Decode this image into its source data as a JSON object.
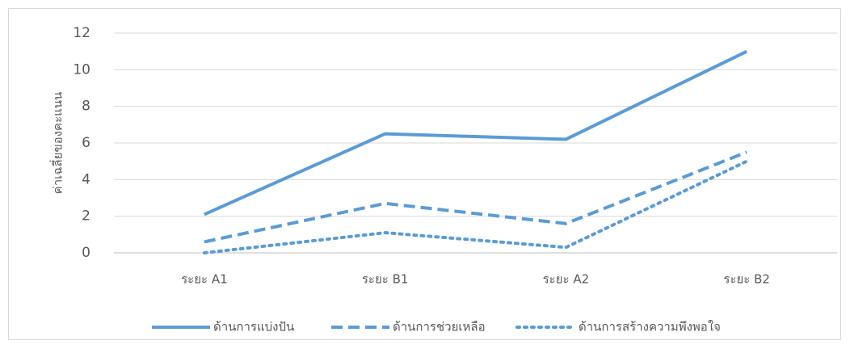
{
  "chart_data": {
    "type": "line",
    "y_label": "ค่าเฉลี่ยของคะแนน",
    "categories": [
      "ระยะ A1",
      "ระยะ B1",
      "ระยะ A2",
      "ระยะ B2"
    ],
    "series": [
      {
        "name": "ด้านการแบ่งปัน",
        "color": "#5b9bd5",
        "dash": "solid",
        "values": [
          2.1,
          6.5,
          6.2,
          11
        ]
      },
      {
        "name": "ด้านการช่วยเหลือ",
        "color": "#5b9bd5",
        "dash": "dash",
        "values": [
          0.6,
          2.7,
          1.6,
          5.5
        ]
      },
      {
        "name": "ด้านการสร้างความพึงพอใจ",
        "color": "#5b9bd5",
        "dash": "dot",
        "values": [
          0,
          1.1,
          0.3,
          5.0
        ]
      }
    ],
    "ylim": [
      0,
      12
    ],
    "yticks": [
      0,
      2,
      4,
      6,
      8,
      10,
      12
    ],
    "grid": true,
    "legend": "bottom"
  }
}
